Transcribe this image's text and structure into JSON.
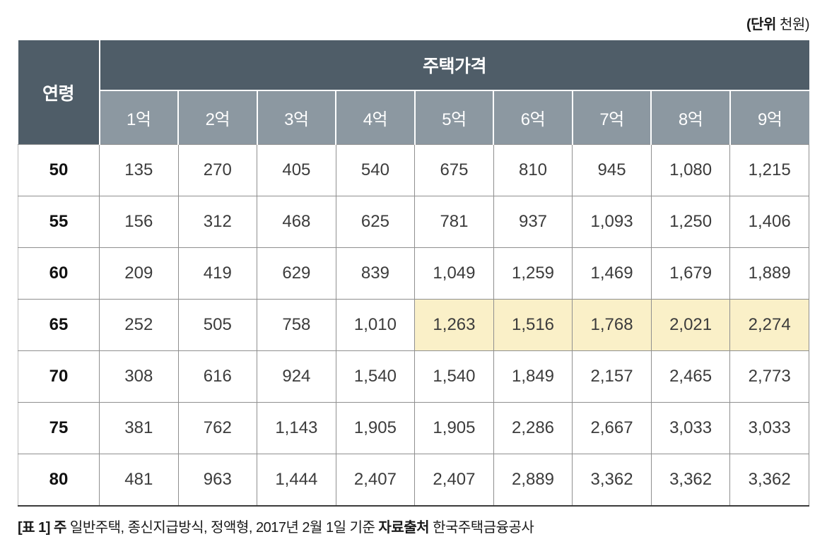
{
  "unit_note": {
    "bold_part": "(단위",
    "normal_part": " 천원)"
  },
  "chart_data": {
    "type": "table",
    "corner_header": "연령",
    "group_header": "주택가격",
    "columns": [
      "1억",
      "2억",
      "3억",
      "4억",
      "5억",
      "6억",
      "7억",
      "8억",
      "9억"
    ],
    "rows": [
      {
        "age": "50",
        "values": [
          "135",
          "270",
          "405",
          "540",
          "675",
          "810",
          "945",
          "1,080",
          "1,215"
        ]
      },
      {
        "age": "55",
        "values": [
          "156",
          "312",
          "468",
          "625",
          "781",
          "937",
          "1,093",
          "1,250",
          "1,406"
        ]
      },
      {
        "age": "60",
        "values": [
          "209",
          "419",
          "629",
          "839",
          "1,049",
          "1,259",
          "1,469",
          "1,679",
          "1,889"
        ]
      },
      {
        "age": "65",
        "values": [
          "252",
          "505",
          "758",
          "1,010",
          "1,263",
          "1,516",
          "1,768",
          "2,021",
          "2,274"
        ]
      },
      {
        "age": "70",
        "values": [
          "308",
          "616",
          "924",
          "1,540",
          "1,540",
          "1,849",
          "2,157",
          "2,465",
          "2,773"
        ]
      },
      {
        "age": "75",
        "values": [
          "381",
          "762",
          "1,143",
          "1,905",
          "1,905",
          "2,286",
          "2,667",
          "3,033",
          "3,033"
        ]
      },
      {
        "age": "80",
        "values": [
          "481",
          "963",
          "1,444",
          "2,407",
          "2,407",
          "2,889",
          "3,362",
          "3,362",
          "3,362"
        ]
      }
    ],
    "highlight": {
      "row_age": "65",
      "column_labels": [
        "5억",
        "6억",
        "7억",
        "8억",
        "9억"
      ],
      "color": "#FAF0C8"
    }
  },
  "colors": {
    "header_dark": "#4F5D68",
    "header_light": "#8C98A1",
    "highlight": "#FAF0C8"
  },
  "footnote": {
    "label_bold": "[표 1] 주",
    "text_1": " 일반주택, 종신지급방식, 정액형, 2017년 2월 1일 기준  ",
    "source_bold": "자료출처",
    "source_text": " 한국주택금융공사"
  }
}
